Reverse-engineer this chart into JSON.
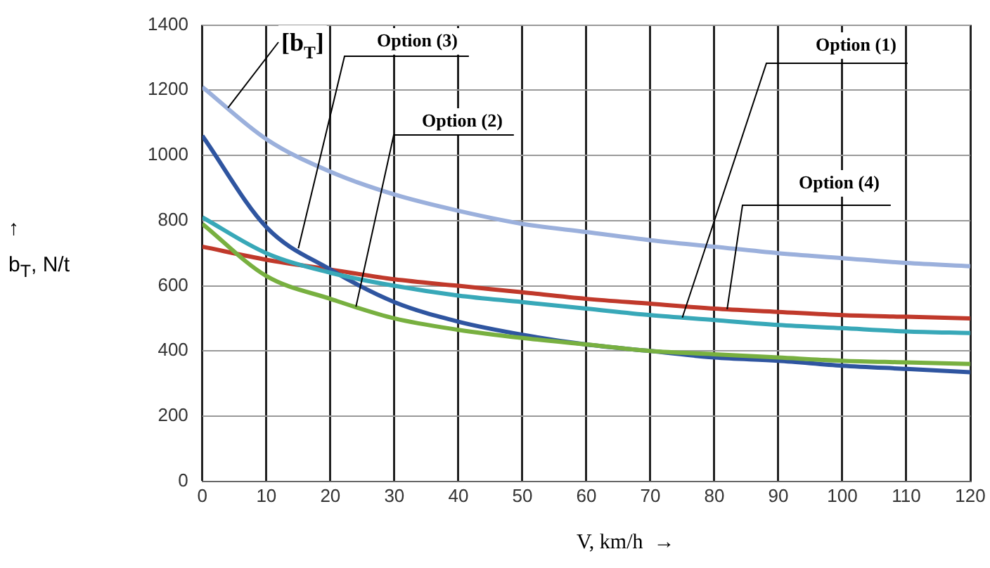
{
  "chart_data": {
    "type": "line",
    "xlabel": "V, km/h  →",
    "ylabel": "↑\nb$_{T}$, N/t",
    "x": [
      0,
      10,
      20,
      30,
      40,
      50,
      60,
      70,
      80,
      90,
      100,
      110,
      120
    ],
    "series": [
      {
        "name": "[b$_{T}$]",
        "color": "#9bb0dc",
        "values": [
          1210,
          1050,
          950,
          880,
          830,
          790,
          765,
          740,
          720,
          700,
          685,
          670,
          660
        ]
      },
      {
        "name": "Option (1)",
        "color": "#38a8b8",
        "values": [
          810,
          700,
          640,
          600,
          570,
          550,
          530,
          510,
          495,
          480,
          470,
          460,
          455
        ]
      },
      {
        "name": "Option (2)",
        "color": "#78b040",
        "values": [
          790,
          630,
          560,
          500,
          465,
          440,
          420,
          400,
          390,
          380,
          370,
          365,
          360
        ]
      },
      {
        "name": "Option (3)",
        "color": "#2f55a0",
        "values": [
          1060,
          780,
          650,
          550,
          490,
          450,
          420,
          400,
          380,
          370,
          355,
          345,
          335
        ]
      },
      {
        "name": "Option (4)",
        "color": "#c0392b",
        "values": [
          720,
          680,
          650,
          620,
          600,
          580,
          560,
          545,
          530,
          520,
          510,
          505,
          500
        ]
      }
    ],
    "xlim": [
      0,
      120
    ],
    "xticks": [
      0,
      10,
      20,
      30,
      40,
      50,
      60,
      70,
      80,
      90,
      100,
      110,
      120
    ],
    "ylim": [
      0,
      1400
    ],
    "yticks": [
      0,
      200,
      400,
      600,
      800,
      1000,
      1200,
      1400
    ],
    "grid": true,
    "legend": false,
    "marker": "none",
    "line_style": "solid"
  }
}
